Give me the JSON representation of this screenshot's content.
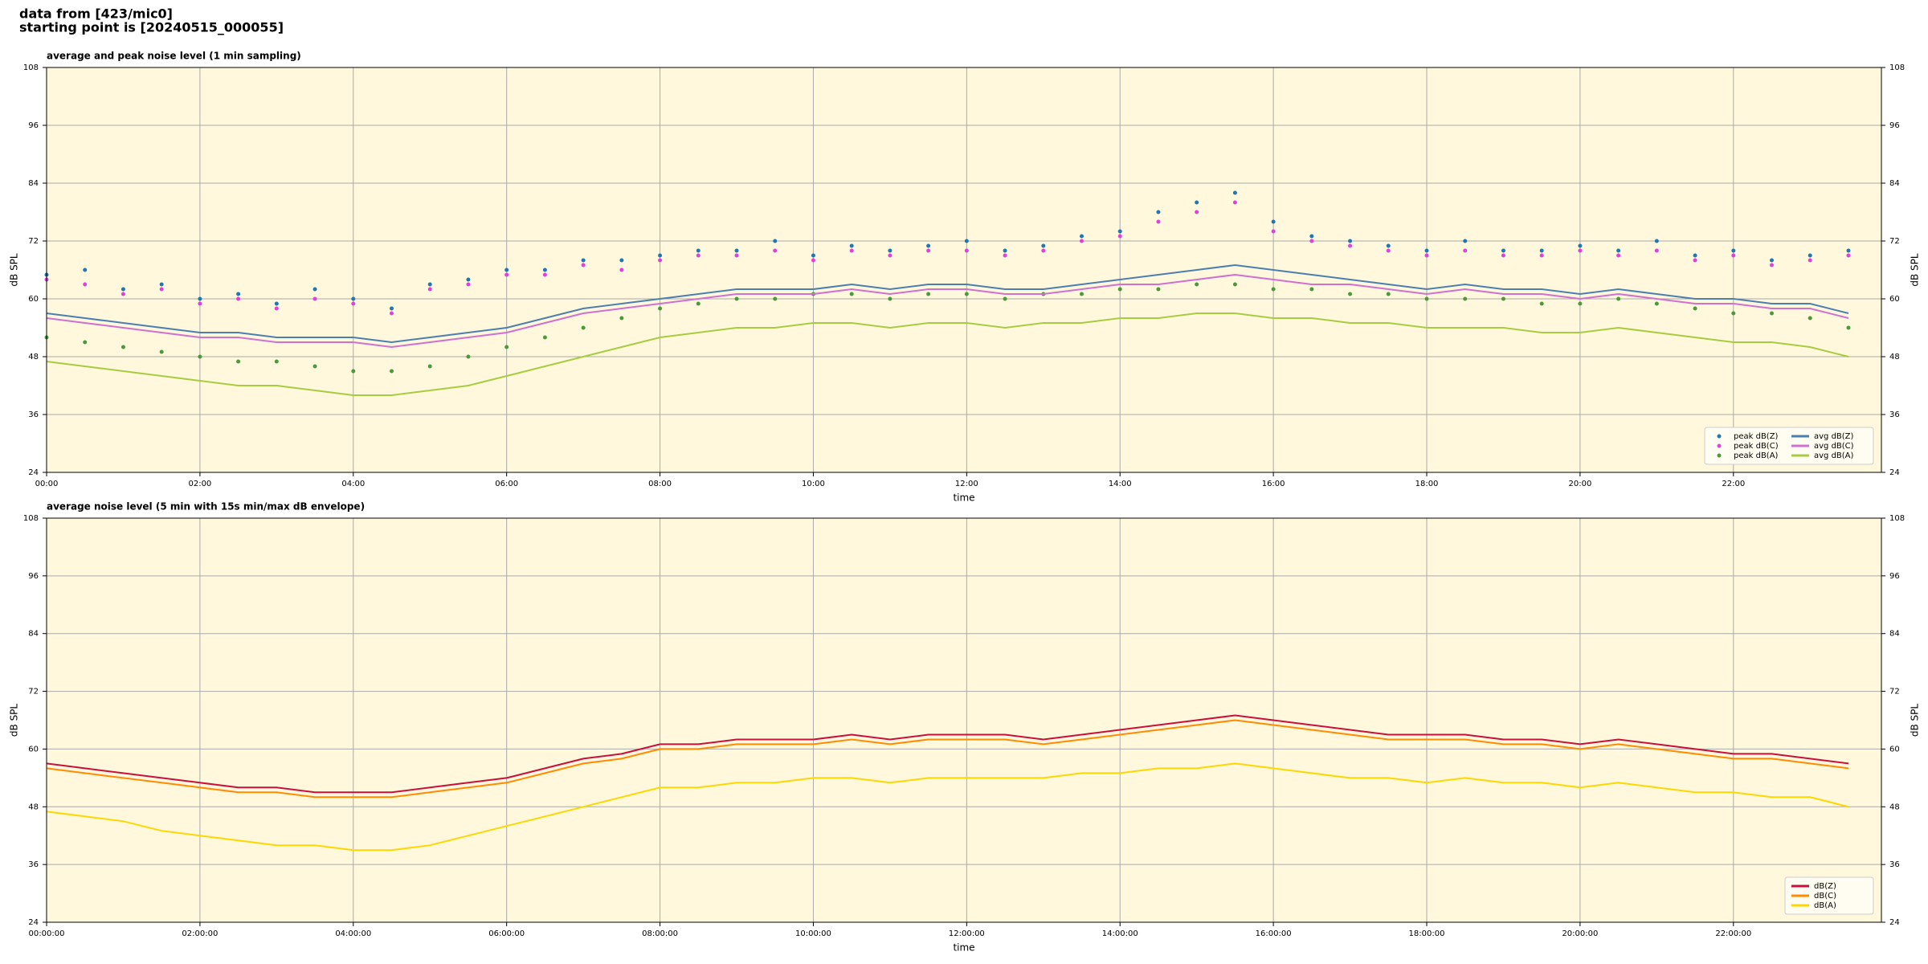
{
  "header": [
    "data from [423/mic0]",
    "starting point is [20240515_000055]"
  ],
  "chart_data": [
    {
      "type": "line",
      "title": "average and peak noise level (1 min sampling)",
      "xlabel": "time",
      "ylabel": "dB SPL",
      "legend": "lower right",
      "grid": true,
      "background": "#fff8dc",
      "xlim": [
        0,
        23.93
      ],
      "ylim": [
        24,
        108
      ],
      "xticks": [
        {
          "value": 0,
          "label": "00:00"
        },
        {
          "value": 2,
          "label": "02:00"
        },
        {
          "value": 4,
          "label": "04:00"
        },
        {
          "value": 6,
          "label": "06:00"
        },
        {
          "value": 8,
          "label": "08:00"
        },
        {
          "value": 10,
          "label": "10:00"
        },
        {
          "value": 12,
          "label": "12:00"
        },
        {
          "value": 14,
          "label": "14:00"
        },
        {
          "value": 16,
          "label": "16:00"
        },
        {
          "value": 18,
          "label": "18:00"
        },
        {
          "value": 20,
          "label": "20:00"
        },
        {
          "value": 22,
          "label": "22:00"
        }
      ],
      "yticks": [
        24,
        36,
        48,
        60,
        72,
        84,
        96,
        108
      ],
      "x": [
        0,
        0.5,
        1,
        1.5,
        2,
        2.5,
        3,
        3.5,
        4,
        4.5,
        5,
        5.5,
        6,
        6.5,
        7,
        7.5,
        8,
        8.5,
        9,
        9.5,
        10,
        10.5,
        11,
        11.5,
        12,
        12.5,
        13,
        13.5,
        14,
        14.5,
        15,
        15.5,
        16,
        16.5,
        17,
        17.5,
        18,
        18.5,
        19,
        19.5,
        20,
        20.5,
        21,
        21.5,
        22,
        22.5,
        23,
        23.5
      ],
      "series": [
        {
          "name": "peak dB(Z)",
          "type": "scatter",
          "color": "#1f77b4",
          "values": [
            65,
            66,
            62,
            63,
            60,
            61,
            59,
            62,
            60,
            58,
            63,
            64,
            66,
            66,
            68,
            68,
            69,
            70,
            70,
            72,
            69,
            71,
            70,
            71,
            72,
            70,
            71,
            73,
            74,
            78,
            80,
            82,
            76,
            73,
            72,
            71,
            70,
            72,
            70,
            70,
            71,
            70,
            72,
            69,
            70,
            68,
            69,
            70
          ]
        },
        {
          "name": "peak dB(C)",
          "type": "scatter",
          "color": "#e040e0",
          "values": [
            64,
            63,
            61,
            62,
            59,
            60,
            58,
            60,
            59,
            57,
            62,
            63,
            65,
            65,
            67,
            66,
            68,
            69,
            69,
            70,
            68,
            70,
            69,
            70,
            70,
            69,
            70,
            72,
            73,
            76,
            78,
            80,
            74,
            72,
            71,
            70,
            69,
            70,
            69,
            69,
            70,
            69,
            70,
            68,
            69,
            67,
            68,
            69
          ]
        },
        {
          "name": "peak dB(A)",
          "type": "scatter",
          "color": "#4a9a3a",
          "values": [
            52,
            51,
            50,
            49,
            48,
            47,
            47,
            46,
            45,
            45,
            46,
            48,
            50,
            52,
            54,
            56,
            58,
            59,
            60,
            60,
            61,
            61,
            60,
            61,
            61,
            60,
            61,
            61,
            62,
            62,
            63,
            63,
            62,
            62,
            61,
            61,
            60,
            60,
            60,
            59,
            59,
            60,
            59,
            58,
            57,
            57,
            56,
            54
          ]
        },
        {
          "name": "avg dB(Z)",
          "type": "line",
          "color": "#4a7fb0",
          "values": [
            57,
            56,
            55,
            54,
            53,
            53,
            52,
            52,
            52,
            51,
            52,
            53,
            54,
            56,
            58,
            59,
            60,
            61,
            62,
            62,
            62,
            63,
            62,
            63,
            63,
            62,
            62,
            63,
            64,
            65,
            66,
            67,
            66,
            65,
            64,
            63,
            62,
            63,
            62,
            62,
            61,
            62,
            61,
            60,
            60,
            59,
            59,
            57
          ]
        },
        {
          "name": "avg dB(C)",
          "type": "line",
          "color": "#d070d0",
          "values": [
            56,
            55,
            54,
            53,
            52,
            52,
            51,
            51,
            51,
            50,
            51,
            52,
            53,
            55,
            57,
            58,
            59,
            60,
            61,
            61,
            61,
            62,
            61,
            62,
            62,
            61,
            61,
            62,
            63,
            63,
            64,
            65,
            64,
            63,
            63,
            62,
            61,
            62,
            61,
            61,
            60,
            61,
            60,
            59,
            59,
            58,
            58,
            56
          ]
        },
        {
          "name": "avg dB(A)",
          "type": "line",
          "color": "#a8cc40",
          "values": [
            47,
            46,
            45,
            44,
            43,
            42,
            42,
            41,
            40,
            40,
            41,
            42,
            44,
            46,
            48,
            50,
            52,
            53,
            54,
            54,
            55,
            55,
            54,
            55,
            55,
            54,
            55,
            55,
            56,
            56,
            57,
            57,
            56,
            56,
            55,
            55,
            54,
            54,
            54,
            53,
            53,
            54,
            53,
            52,
            51,
            51,
            50,
            48
          ]
        }
      ]
    },
    {
      "type": "line",
      "title": "average noise level (5 min with 15s min/max dB envelope)",
      "xlabel": "time",
      "ylabel": "dB SPL",
      "legend": "lower right",
      "grid": true,
      "background": "#fff8dc",
      "xlim": [
        0,
        23.93
      ],
      "ylim": [
        24,
        108
      ],
      "xticks": [
        {
          "value": 0,
          "label": "00:00:00"
        },
        {
          "value": 2,
          "label": "02:00:00"
        },
        {
          "value": 4,
          "label": "04:00:00"
        },
        {
          "value": 6,
          "label": "06:00:00"
        },
        {
          "value": 8,
          "label": "08:00:00"
        },
        {
          "value": 10,
          "label": "10:00:00"
        },
        {
          "value": 12,
          "label": "12:00:00"
        },
        {
          "value": 14,
          "label": "14:00:00"
        },
        {
          "value": 16,
          "label": "16:00:00"
        },
        {
          "value": 18,
          "label": "18:00:00"
        },
        {
          "value": 20,
          "label": "20:00:00"
        },
        {
          "value": 22,
          "label": "22:00:00"
        }
      ],
      "yticks": [
        24,
        36,
        48,
        60,
        72,
        84,
        96,
        108
      ],
      "x": [
        0,
        0.5,
        1,
        1.5,
        2,
        2.5,
        3,
        3.5,
        4,
        4.5,
        5,
        5.5,
        6,
        6.5,
        7,
        7.5,
        8,
        8.5,
        9,
        9.5,
        10,
        10.5,
        11,
        11.5,
        12,
        12.5,
        13,
        13.5,
        14,
        14.5,
        15,
        15.5,
        16,
        16.5,
        17,
        17.5,
        18,
        18.5,
        19,
        19.5,
        20,
        20.5,
        21,
        21.5,
        22,
        22.5,
        23,
        23.5
      ],
      "series": [
        {
          "name": "dB(Z)",
          "type": "line",
          "color": "#c8103c",
          "values": [
            57,
            56,
            55,
            54,
            53,
            52,
            52,
            51,
            51,
            51,
            52,
            53,
            54,
            56,
            58,
            59,
            61,
            61,
            62,
            62,
            62,
            63,
            62,
            63,
            63,
            63,
            62,
            63,
            64,
            65,
            66,
            67,
            66,
            65,
            64,
            63,
            63,
            63,
            62,
            62,
            61,
            62,
            61,
            60,
            59,
            59,
            58,
            57
          ]
        },
        {
          "name": "dB(C)",
          "type": "line",
          "color": "#ff8c00",
          "values": [
            56,
            55,
            54,
            53,
            52,
            51,
            51,
            50,
            50,
            50,
            51,
            52,
            53,
            55,
            57,
            58,
            60,
            60,
            61,
            61,
            61,
            62,
            61,
            62,
            62,
            62,
            61,
            62,
            63,
            64,
            65,
            66,
            65,
            64,
            63,
            62,
            62,
            62,
            61,
            61,
            60,
            61,
            60,
            59,
            58,
            58,
            57,
            56
          ]
        },
        {
          "name": "dB(A)",
          "type": "line",
          "color": "#ffd700",
          "values": [
            47,
            46,
            45,
            43,
            42,
            41,
            40,
            40,
            39,
            39,
            40,
            42,
            44,
            46,
            48,
            50,
            52,
            52,
            53,
            53,
            54,
            54,
            53,
            54,
            54,
            54,
            54,
            55,
            55,
            56,
            56,
            57,
            56,
            55,
            54,
            54,
            53,
            54,
            53,
            53,
            52,
            53,
            52,
            51,
            51,
            50,
            50,
            48
          ]
        }
      ]
    }
  ]
}
